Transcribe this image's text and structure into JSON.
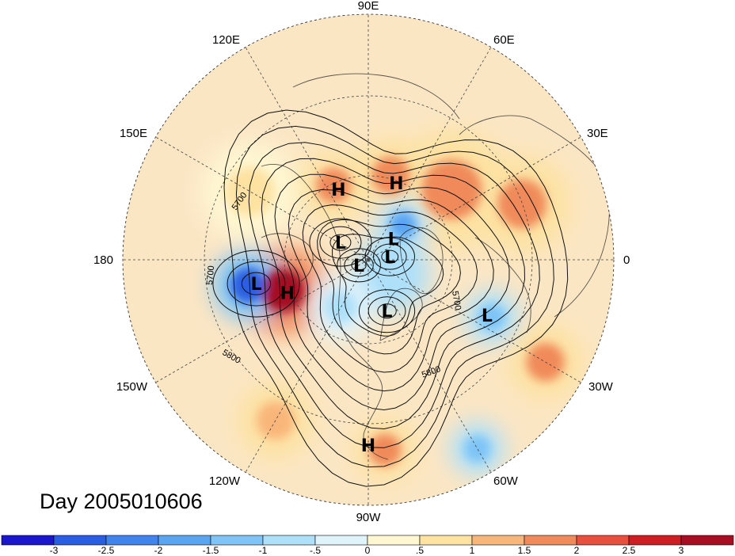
{
  "title_label": "Day 2005010606",
  "longitude_labels": [
    "90E",
    "60E",
    "30E",
    "0",
    "30W",
    "60W",
    "90W",
    "120W",
    "150W",
    "180",
    "150E",
    "120E"
  ],
  "contour_labels": [
    "5700",
    "5700",
    "5700",
    "5800",
    "5800"
  ],
  "pressure_centers": [
    {
      "type": "H",
      "lat": 62,
      "lon": 113
    },
    {
      "type": "H",
      "lat": 60,
      "lon": 70
    },
    {
      "type": "L",
      "lat": 78,
      "lon": 148
    },
    {
      "type": "L",
      "lat": 78,
      "lon": 40
    },
    {
      "type": "L",
      "lat": 82,
      "lon": 8
    },
    {
      "type": "L",
      "lat": 86,
      "lon": 210
    },
    {
      "type": "L",
      "lat": 70,
      "lon": 290
    },
    {
      "type": "L",
      "lat": 48,
      "lon": 192
    },
    {
      "type": "H",
      "lat": 58,
      "lon": 202
    },
    {
      "type": "L",
      "lat": 42,
      "lon": 335
    },
    {
      "type": "H",
      "lat": 22,
      "lon": 270
    }
  ],
  "colorbar": {
    "ticks": [
      "-3",
      "-2.5",
      "-2",
      "-1.5",
      "-1",
      "-.5",
      "0",
      ".5",
      "1",
      "1.5",
      "2",
      "2.5",
      "3"
    ],
    "colors": [
      "#1b16c9",
      "#2a5ee0",
      "#3f85ec",
      "#5aa5f2",
      "#7ec4f6",
      "#aee0f9",
      "#dff3fb",
      "#fff7d2",
      "#fde2a2",
      "#f9b67a",
      "#f08a5a",
      "#e5513c",
      "#cc1f23",
      "#a50f21"
    ]
  },
  "anomaly_features": [
    {
      "lat": 57,
      "lon": 200,
      "r": 16,
      "v": 3.1
    },
    {
      "lat": 45,
      "lon": 192,
      "r": 13,
      "v": -2.6
    },
    {
      "lat": 60,
      "lon": 115,
      "r": 13,
      "v": 1.8
    },
    {
      "lat": 58,
      "lon": 75,
      "r": 14,
      "v": 1.6
    },
    {
      "lat": 50,
      "lon": 40,
      "r": 22,
      "v": 1.7
    },
    {
      "lat": 30,
      "lon": 20,
      "r": 18,
      "v": 1.5
    },
    {
      "lat": 15,
      "lon": 330,
      "r": 14,
      "v": 1.6
    },
    {
      "lat": 20,
      "lon": 275,
      "r": 12,
      "v": 1.5
    },
    {
      "lat": 22,
      "lon": 240,
      "r": 14,
      "v": 1.2
    },
    {
      "lat": 10,
      "lon": 300,
      "r": 10,
      "v": -1.5
    },
    {
      "lat": 40,
      "lon": 335,
      "r": 10,
      "v": -1.4
    },
    {
      "lat": 72,
      "lon": 45,
      "r": 10,
      "v": -1.6
    },
    {
      "lat": 80,
      "lon": 330,
      "r": 14,
      "v": -1.0
    },
    {
      "lat": 70,
      "lon": 240,
      "r": 12,
      "v": -0.8
    },
    {
      "lat": 40,
      "lon": 150,
      "r": 18,
      "v": 0.8
    }
  ]
}
